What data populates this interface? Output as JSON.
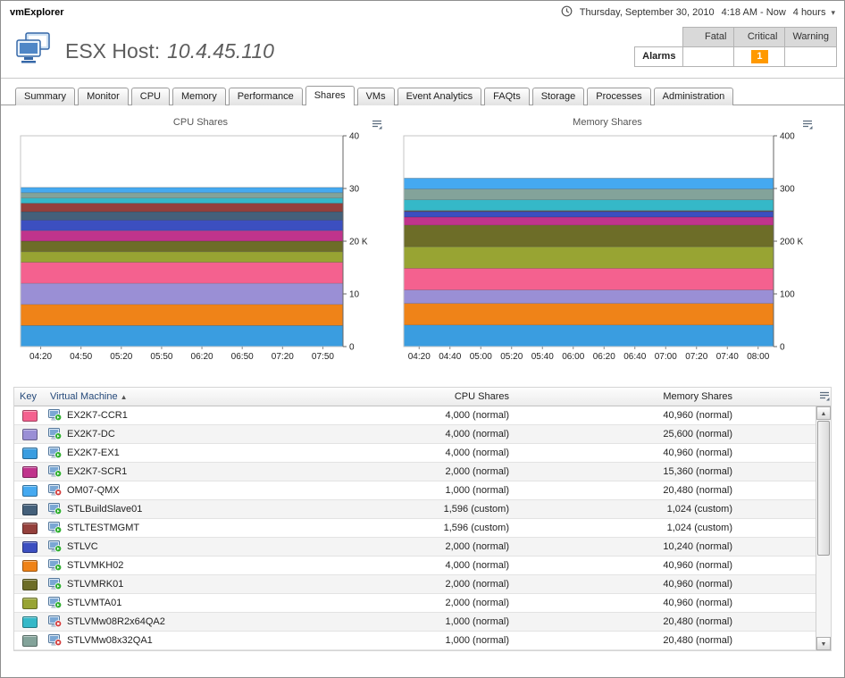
{
  "app": {
    "title": "vmExplorer"
  },
  "timebar": {
    "date": "Thursday, September 30, 2010",
    "range": "4:18 AM - Now",
    "duration": "4 hours"
  },
  "host": {
    "label": "ESX Host:",
    "value": "10.4.45.110"
  },
  "alarms": {
    "label": "Alarms",
    "columns": [
      "Fatal",
      "Critical",
      "Warning"
    ],
    "fatal_count": "",
    "critical_count": "1",
    "warning_count": "",
    "critical_color": "#ff9900"
  },
  "tabs": [
    {
      "label": "Summary"
    },
    {
      "label": "Monitor"
    },
    {
      "label": "CPU"
    },
    {
      "label": "Memory"
    },
    {
      "label": "Performance"
    },
    {
      "label": "Shares",
      "active": true
    },
    {
      "label": "VMs"
    },
    {
      "label": "Event Analytics"
    },
    {
      "label": "FAQts"
    },
    {
      "label": "Storage"
    },
    {
      "label": "Processes"
    },
    {
      "label": "Administration"
    }
  ],
  "chart_data": [
    {
      "type": "area",
      "stacked": true,
      "title": "CPU Shares",
      "ylim": [
        0,
        40000
      ],
      "y_ticks": [
        {
          "v": 0,
          "label": "0"
        },
        {
          "v": 10000,
          "label": "10"
        },
        {
          "v": 20000,
          "label": "20 K"
        },
        {
          "v": 30000,
          "label": "30"
        },
        {
          "v": 40000,
          "label": "40"
        }
      ],
      "x_ticks": [
        "04:20",
        "04:50",
        "05:20",
        "05:50",
        "06:20",
        "06:50",
        "07:20",
        "07:50"
      ],
      "series": [
        {
          "name": "EX2K7-EX1",
          "color": "#3a9de0",
          "value": 4000
        },
        {
          "name": "STLVMKH02",
          "color": "#ef8318",
          "value": 4000
        },
        {
          "name": "EX2K7-DC",
          "color": "#9a8fd5",
          "value": 4000
        },
        {
          "name": "EX2K7-CCR1",
          "color": "#f4618f",
          "value": 4000
        },
        {
          "name": "STLVMTA01",
          "color": "#98a433",
          "value": 2000
        },
        {
          "name": "STLVMRK01",
          "color": "#6d6d28",
          "value": 2000
        },
        {
          "name": "EX2K7-SCR1",
          "color": "#c0348c",
          "value": 2000
        },
        {
          "name": "STLVC",
          "color": "#3c4fc0",
          "value": 2000
        },
        {
          "name": "STLBuildSlave01",
          "color": "#44607a",
          "value": 1596
        },
        {
          "name": "STLTESTMGMT",
          "color": "#94403c",
          "value": 1596
        },
        {
          "name": "STLVMw08R2x64QA2",
          "color": "#35b8c8",
          "value": 1000
        },
        {
          "name": "STLVMw08x32QA1",
          "color": "#83a39a",
          "value": 1000
        },
        {
          "name": "OM07-QMX",
          "color": "#45a9f0",
          "value": 1000
        }
      ]
    },
    {
      "type": "area",
      "stacked": true,
      "title": "Memory Shares",
      "ylim": [
        0,
        400000
      ],
      "y_ticks": [
        {
          "v": 0,
          "label": "0"
        },
        {
          "v": 100000,
          "label": "100"
        },
        {
          "v": 200000,
          "label": "200 K"
        },
        {
          "v": 300000,
          "label": "300"
        },
        {
          "v": 400000,
          "label": "400"
        }
      ],
      "x_ticks": [
        "04:20",
        "04:40",
        "05:00",
        "05:20",
        "05:40",
        "06:00",
        "06:20",
        "06:40",
        "07:00",
        "07:20",
        "07:40",
        "08:00"
      ],
      "series": [
        {
          "name": "EX2K7-EX1",
          "color": "#3a9de0",
          "value": 40960
        },
        {
          "name": "STLVMKH02",
          "color": "#ef8318",
          "value": 40960
        },
        {
          "name": "EX2K7-DC",
          "color": "#9a8fd5",
          "value": 25600
        },
        {
          "name": "EX2K7-CCR1",
          "color": "#f4618f",
          "value": 40960
        },
        {
          "name": "STLVMTA01",
          "color": "#98a433",
          "value": 40960
        },
        {
          "name": "STLVMRK01",
          "color": "#6d6d28",
          "value": 40960
        },
        {
          "name": "EX2K7-SCR1",
          "color": "#c0348c",
          "value": 15360
        },
        {
          "name": "STLVC",
          "color": "#3c4fc0",
          "value": 10240
        },
        {
          "name": "STLBuildSlave01",
          "color": "#44607a",
          "value": 1024
        },
        {
          "name": "STLTESTMGMT",
          "color": "#94403c",
          "value": 1024
        },
        {
          "name": "STLVMw08R2x64QA2",
          "color": "#35b8c8",
          "value": 20480
        },
        {
          "name": "STLVMw08x32QA1",
          "color": "#83a39a",
          "value": 20480
        },
        {
          "name": "OM07-QMX",
          "color": "#45a9f0",
          "value": 20480
        }
      ]
    }
  ],
  "table": {
    "headers": [
      "Key",
      "Virtual Machine",
      "CPU Shares",
      "Memory Shares"
    ],
    "sort_column": "Virtual Machine",
    "sort_direction": "ascending"
  },
  "vms": [
    {
      "name": "EX2K7-CCR1",
      "status": "running",
      "key_color": "#f4618f",
      "cpu_shares": "4,000 (normal)",
      "memory_shares": "40,960 (normal)"
    },
    {
      "name": "EX2K7-DC",
      "status": "running",
      "key_color": "#9a8fd5",
      "cpu_shares": "4,000 (normal)",
      "memory_shares": "25,600 (normal)"
    },
    {
      "name": "EX2K7-EX1",
      "status": "running",
      "key_color": "#3a9de0",
      "cpu_shares": "4,000 (normal)",
      "memory_shares": "40,960 (normal)"
    },
    {
      "name": "EX2K7-SCR1",
      "status": "running",
      "key_color": "#c0348c",
      "cpu_shares": "2,000 (normal)",
      "memory_shares": "15,360 (normal)"
    },
    {
      "name": "OM07-QMX",
      "status": "stopped",
      "key_color": "#45a9f0",
      "cpu_shares": "1,000 (normal)",
      "memory_shares": "20,480 (normal)"
    },
    {
      "name": "STLBuildSlave01",
      "status": "running",
      "key_color": "#44607a",
      "cpu_shares": "1,596 (custom)",
      "memory_shares": "1,024 (custom)"
    },
    {
      "name": "STLTESTMGMT",
      "status": "running",
      "key_color": "#94403c",
      "cpu_shares": "1,596 (custom)",
      "memory_shares": "1,024 (custom)"
    },
    {
      "name": "STLVC",
      "status": "running",
      "key_color": "#3c4fc0",
      "cpu_shares": "2,000 (normal)",
      "memory_shares": "10,240 (normal)"
    },
    {
      "name": "STLVMKH02",
      "status": "running",
      "key_color": "#ef8318",
      "cpu_shares": "4,000 (normal)",
      "memory_shares": "40,960 (normal)"
    },
    {
      "name": "STLVMRK01",
      "status": "running",
      "key_color": "#6d6d28",
      "cpu_shares": "2,000 (normal)",
      "memory_shares": "40,960 (normal)"
    },
    {
      "name": "STLVMTA01",
      "status": "running",
      "key_color": "#98a433",
      "cpu_shares": "2,000 (normal)",
      "memory_shares": "40,960 (normal)"
    },
    {
      "name": "STLVMw08R2x64QA2",
      "status": "stopped",
      "key_color": "#35b8c8",
      "cpu_shares": "1,000 (normal)",
      "memory_shares": "20,480 (normal)"
    },
    {
      "name": "STLVMw08x32QA1",
      "status": "stopped",
      "key_color": "#83a39a",
      "cpu_shares": "1,000 (normal)",
      "memory_shares": "20,480 (normal)"
    }
  ]
}
